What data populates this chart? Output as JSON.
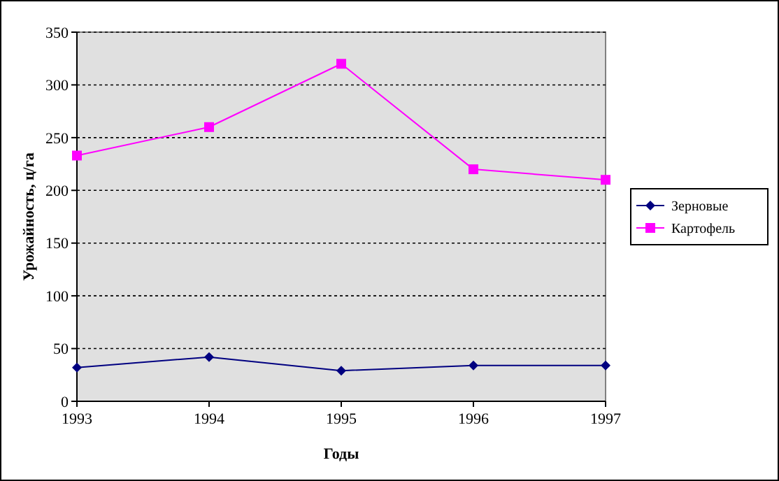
{
  "chart_data": {
    "type": "line",
    "xlabel": "Годы",
    "ylabel": "Урожайность, ц/га",
    "x": [
      1993,
      1994,
      1995,
      1996,
      1997
    ],
    "series": [
      {
        "name": "Зерновые",
        "color": "#000080",
        "marker": "diamond",
        "values": [
          32,
          42,
          29,
          34,
          34
        ]
      },
      {
        "name": "Картофель",
        "color": "#ff00ff",
        "marker": "square",
        "values": [
          233,
          260,
          320,
          220,
          210
        ]
      }
    ],
    "xlim": [
      1993,
      1997
    ],
    "xticks": [
      1993,
      1994,
      1995,
      1996,
      1997
    ],
    "ylim": [
      0,
      350
    ],
    "yticks": [
      0,
      50,
      100,
      150,
      200,
      250,
      300,
      350
    ],
    "grid": "y",
    "legend": "right",
    "line_style": "solid"
  }
}
